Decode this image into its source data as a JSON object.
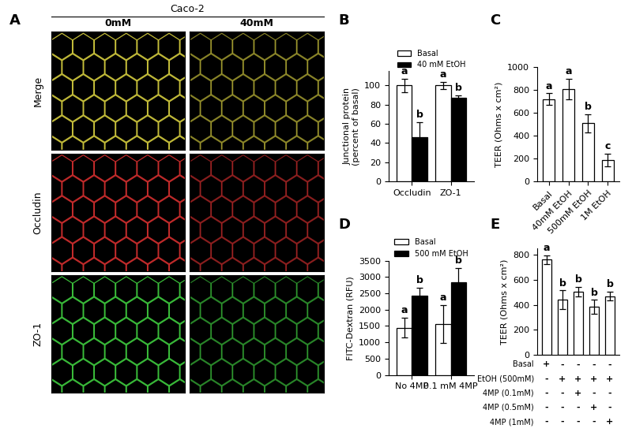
{
  "image_panel": {
    "panel_label": "A",
    "title": "Caco-2",
    "columns": [
      "0mM",
      "40mM"
    ],
    "rows": [
      "Merge",
      "Occludin",
      "ZO-1"
    ]
  },
  "chart_data": [
    {
      "panel_label": "B",
      "type": "bar",
      "y_label": "Junctional protein\n(percent of basal)",
      "categories": [
        "Occludin",
        "ZO-1"
      ],
      "series": [
        {
          "name": "Basal",
          "color": "#ffffff",
          "values": [
            100,
            100
          ],
          "errors": [
            7,
            4
          ],
          "letters": [
            "a",
            "a"
          ]
        },
        {
          "name": "40 mM EtOH",
          "color": "#000000",
          "values": [
            46,
            87
          ],
          "errors": [
            16,
            3
          ],
          "letters": [
            "b",
            "b"
          ]
        }
      ],
      "ylim": [
        0,
        115
      ],
      "yticks": [
        0,
        20,
        40,
        60,
        80,
        100
      ],
      "legend": "upper center"
    },
    {
      "panel_label": "C",
      "type": "bar",
      "y_label": "TEER (Ohms x cm²)",
      "categories": [
        "Basal",
        "40mM EtOH",
        "500mM EtOH",
        "1M EtOH"
      ],
      "series": [
        {
          "color": "#ffffff",
          "values": [
            720,
            810,
            510,
            185
          ],
          "errors": [
            50,
            90,
            80,
            55
          ],
          "letters": [
            "a",
            "a",
            "b",
            "c"
          ]
        }
      ],
      "ylim": [
        0,
        1000
      ],
      "yticks": [
        0,
        200,
        400,
        600,
        800,
        1000
      ]
    },
    {
      "panel_label": "D",
      "type": "bar",
      "y_label": "FITC-Dextran (RFU)",
      "categories": [
        "No 4MP",
        "0.1 mM 4MP"
      ],
      "series": [
        {
          "name": "Basal",
          "color": "#ffffff",
          "values": [
            1450,
            1570
          ],
          "errors": [
            300,
            580
          ],
          "letters": [
            "a",
            "a"
          ]
        },
        {
          "name": "500 mM EtOH",
          "color": "#000000",
          "values": [
            2420,
            2830
          ],
          "errors": [
            250,
            450
          ],
          "letters": [
            "b",
            "b"
          ]
        }
      ],
      "ylim": [
        0,
        3500
      ],
      "yticks": [
        0,
        500,
        1000,
        1500,
        2000,
        2500,
        3000,
        3500
      ],
      "legend": "upper center"
    },
    {
      "panel_label": "E",
      "type": "bar",
      "y_label": "TEER (Ohms x cm²)",
      "categories": [
        null,
        null,
        null,
        null,
        null
      ],
      "series": [
        {
          "color": "#ffffff",
          "values": [
            760,
            440,
            505,
            385,
            470
          ],
          "errors": [
            35,
            75,
            40,
            55,
            35
          ],
          "letters": [
            "a",
            "b",
            "b",
            "b",
            "b"
          ]
        }
      ],
      "ylim": [
        0,
        850
      ],
      "yticks": [
        0,
        200,
        400,
        600,
        800
      ],
      "tick_labels": "y",
      "condition_table": [
        {
          "label": "Basal",
          "marks": [
            "+",
            "-",
            "-",
            "-",
            "-"
          ]
        },
        {
          "label": "EtOH (500mM)",
          "marks": [
            "-",
            "+",
            "+",
            "+",
            "+"
          ]
        },
        {
          "label": "4MP (0.1mM)",
          "marks": [
            "-",
            "-",
            "+",
            "-",
            "-"
          ]
        },
        {
          "label": "4MP (0.5mM)",
          "marks": [
            "-",
            "-",
            "-",
            "+",
            "-"
          ]
        },
        {
          "label": "4MP (1mM)",
          "marks": [
            "-",
            "-",
            "-",
            "-",
            "+"
          ]
        }
      ]
    }
  ]
}
